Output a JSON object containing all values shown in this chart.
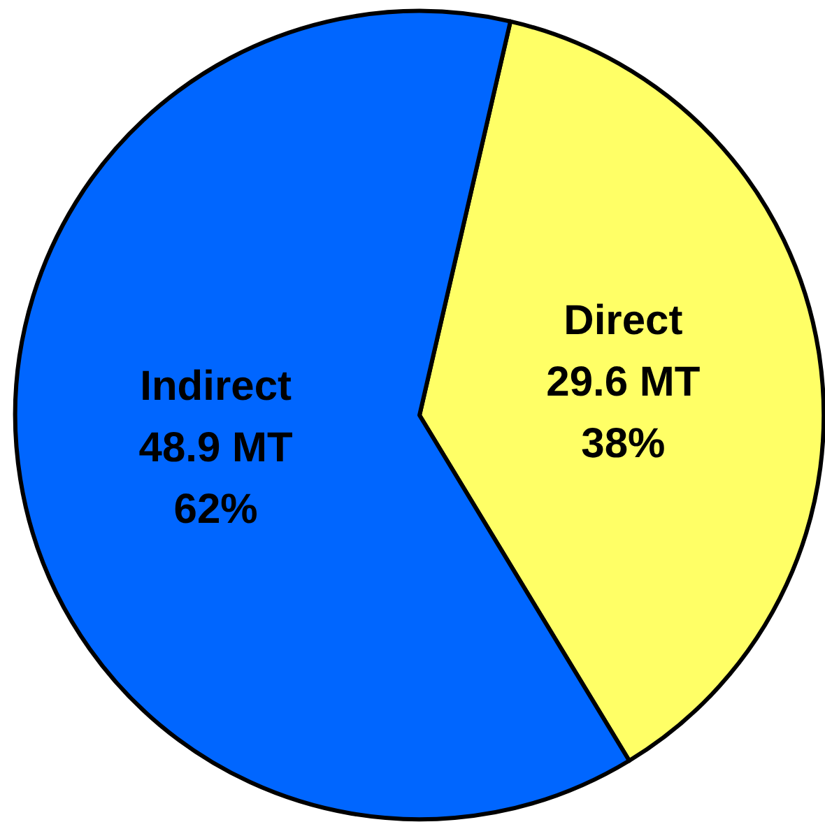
{
  "chart_data": {
    "type": "pie",
    "categories": [
      "Direct",
      "Indirect"
    ],
    "values": [
      29.6,
      48.9
    ],
    "value_labels": [
      "29.6 MT\n38%",
      "48.9 MT\n62%"
    ],
    "colors": [
      "#ffff66",
      "#0066ff"
    ],
    "legend": false
  }
}
